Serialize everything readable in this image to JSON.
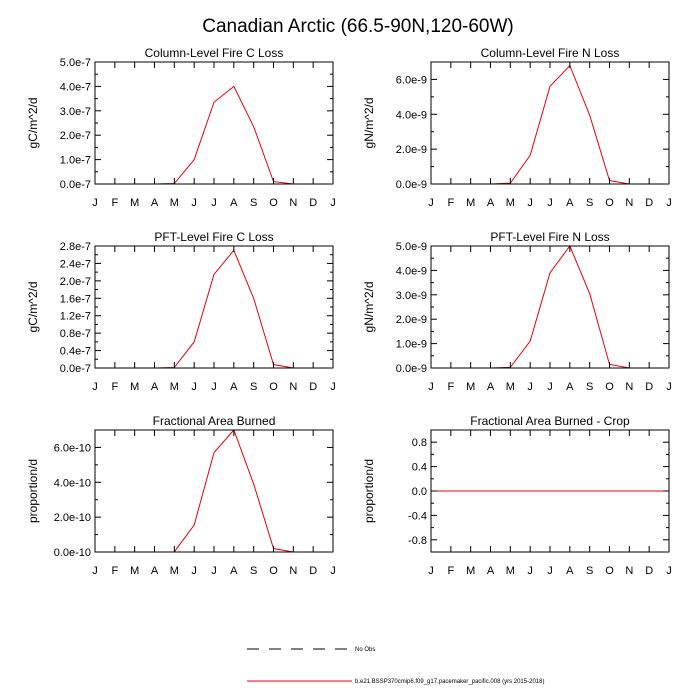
{
  "figure": {
    "title": "Canadian Arctic (66.5-90N,120-60W)"
  },
  "months": [
    "J",
    "F",
    "M",
    "A",
    "M",
    "J",
    "J",
    "A",
    "S",
    "O",
    "N",
    "D",
    "J"
  ],
  "colors": {
    "model": "#e8000b",
    "obs": "#000000",
    "axis": "#000000"
  },
  "legend": {
    "obs_label": "No Obs",
    "model_label": "b.e21.BSSP370cmip6.f09_g17.pacemaker_pacific.008 (yrs 2015-2018)"
  },
  "chart_data": [
    {
      "type": "line",
      "title": "Column-Level Fire C Loss",
      "ylabel": "gC/m^2/d",
      "ylim": [
        0,
        5e-07
      ],
      "yticks": [
        0,
        1e-07,
        2e-07,
        3e-07,
        4e-07,
        5e-07
      ],
      "ytick_labels": [
        "0.0e-7",
        "1.0e-7",
        "2.0e-7",
        "3.0e-7",
        "4.0e-7",
        "5.0e-7"
      ],
      "x": [
        1,
        2,
        3,
        4,
        5,
        6,
        7,
        8,
        9,
        10,
        11,
        12,
        13
      ],
      "xtick_labels": [
        "J",
        "F",
        "M",
        "A",
        "M",
        "J",
        "J",
        "A",
        "S",
        "O",
        "N",
        "D",
        "J"
      ],
      "series": [
        {
          "values": [
            0,
            0,
            0,
            0,
            2e-09,
            1e-07,
            3.35e-07,
            4e-07,
            2.35e-07,
            1e-08,
            0,
            0,
            0
          ]
        }
      ]
    },
    {
      "type": "line",
      "title": "Column-Level Fire N Loss",
      "ylabel": "gN/m^2/d",
      "ylim": [
        0,
        7e-09
      ],
      "yticks": [
        0,
        2e-09,
        4e-09,
        6e-09
      ],
      "ytick_labels": [
        "0.0e-9",
        "2.0e-9",
        "4.0e-9",
        "6.0e-9"
      ],
      "x": [
        1,
        2,
        3,
        4,
        5,
        6,
        7,
        8,
        9,
        10,
        11,
        12,
        13
      ],
      "xtick_labels": [
        "J",
        "F",
        "M",
        "A",
        "M",
        "J",
        "J",
        "A",
        "S",
        "O",
        "N",
        "D",
        "J"
      ],
      "series": [
        {
          "values": [
            0,
            0,
            0,
            0,
            5e-11,
            1.65e-09,
            5.6e-09,
            6.8e-09,
            3.95e-09,
            2e-10,
            0,
            0,
            0
          ]
        }
      ]
    },
    {
      "type": "line",
      "title": "PFT-Level Fire C Loss",
      "ylabel": "gC/m^2/d",
      "ylim": [
        0,
        2.8e-07
      ],
      "yticks": [
        0,
        4e-08,
        8e-08,
        1.2e-07,
        1.6e-07,
        2e-07,
        2.4e-07,
        2.8e-07
      ],
      "ytick_labels": [
        "0.0e-7",
        "0.4e-7",
        "0.8e-7",
        "1.2e-7",
        "1.6e-7",
        "2.0e-7",
        "2.4e-7",
        "2.8e-7"
      ],
      "x": [
        1,
        2,
        3,
        4,
        5,
        6,
        7,
        8,
        9,
        10,
        11,
        12,
        13
      ],
      "xtick_labels": [
        "J",
        "F",
        "M",
        "A",
        "M",
        "J",
        "J",
        "A",
        "S",
        "O",
        "N",
        "D",
        "J"
      ],
      "series": [
        {
          "values": [
            0,
            0,
            0,
            0,
            1e-09,
            6e-08,
            2.15e-07,
            2.7e-07,
            1.6e-07,
            8e-09,
            0,
            0,
            0
          ]
        }
      ]
    },
    {
      "type": "line",
      "title": "PFT-Level Fire N Loss",
      "ylabel": "gN/m^2/d",
      "ylim": [
        0,
        5e-09
      ],
      "yticks": [
        0,
        1e-09,
        2e-09,
        3e-09,
        4e-09,
        5e-09
      ],
      "ytick_labels": [
        "0.0e-9",
        "1.0e-9",
        "2.0e-9",
        "3.0e-9",
        "4.0e-9",
        "5.0e-9"
      ],
      "x": [
        1,
        2,
        3,
        4,
        5,
        6,
        7,
        8,
        9,
        10,
        11,
        12,
        13
      ],
      "xtick_labels": [
        "J",
        "F",
        "M",
        "A",
        "M",
        "J",
        "J",
        "A",
        "S",
        "O",
        "N",
        "D",
        "J"
      ],
      "series": [
        {
          "values": [
            0,
            0,
            0,
            0,
            3e-11,
            1.1e-09,
            3.9e-09,
            5e-09,
            3.05e-09,
            1.5e-10,
            0,
            0,
            0
          ]
        }
      ]
    },
    {
      "type": "line",
      "title": "Fractional Area Burned",
      "ylabel": "proportion/d",
      "ylim": [
        0,
        7e-10
      ],
      "yticks": [
        0,
        2e-10,
        4e-10,
        6e-10
      ],
      "ytick_labels": [
        "0.0e-10",
        "2.0e-10",
        "4.0e-10",
        "6.0e-10"
      ],
      "x": [
        1,
        2,
        3,
        4,
        5,
        6,
        7,
        8,
        9,
        10,
        11,
        12,
        13
      ],
      "xtick_labels": [
        "J",
        "F",
        "M",
        "A",
        "M",
        "J",
        "J",
        "A",
        "S",
        "O",
        "N",
        "D",
        "J"
      ],
      "series": [
        {
          "values": [
            0,
            0,
            0,
            0,
            1e-12,
            1.55e-10,
            5.7e-10,
            7e-10,
            3.9e-10,
            2e-11,
            0,
            0,
            0
          ]
        }
      ]
    },
    {
      "type": "line",
      "title": "Fractional Area Burned - Crop",
      "ylabel": "proportion/d",
      "ylim": [
        -1.0,
        1.0
      ],
      "yticks": [
        -0.8,
        -0.4,
        0,
        0.4,
        0.8
      ],
      "ytick_labels": [
        "-0.8",
        "-0.4",
        "0.0",
        "0.4",
        "0.8"
      ],
      "x": [
        1,
        2,
        3,
        4,
        5,
        6,
        7,
        8,
        9,
        10,
        11,
        12,
        13
      ],
      "xtick_labels": [
        "J",
        "F",
        "M",
        "A",
        "M",
        "J",
        "J",
        "A",
        "S",
        "O",
        "N",
        "D",
        "J"
      ],
      "series": [
        {
          "values": [
            0,
            0,
            0,
            0,
            0,
            0,
            0,
            0,
            0,
            0,
            0,
            0,
            0
          ]
        }
      ]
    }
  ]
}
